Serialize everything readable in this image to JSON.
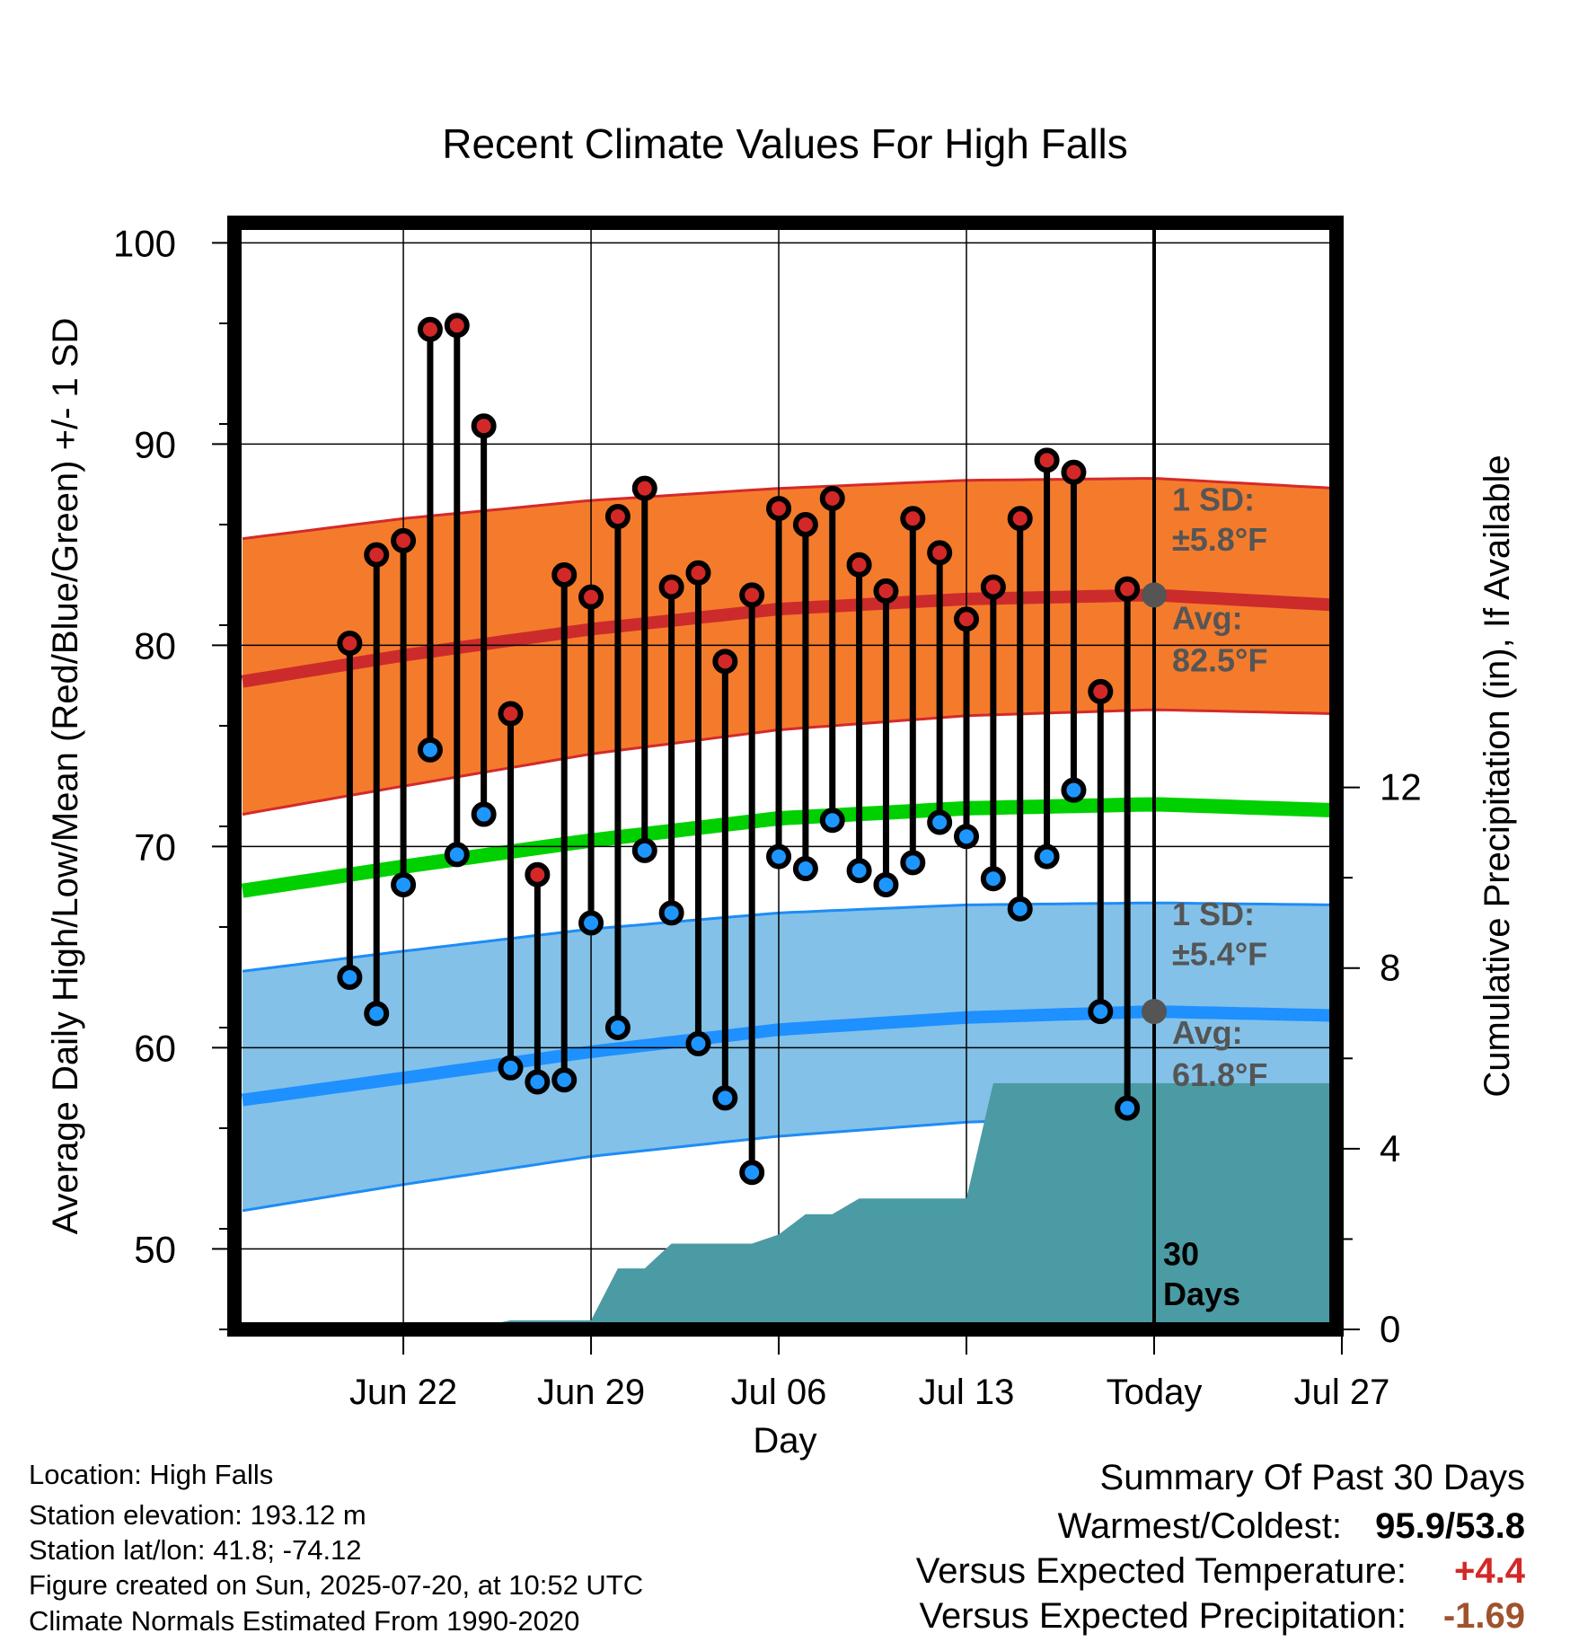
{
  "chart_data": {
    "type": "line",
    "title": "Recent Climate Values For High Falls",
    "xlabel": "Day",
    "ylabel": "Average Daily High/Low/Mean (Red/Blue/Green) +/- 1 SD",
    "y2label": "Cumulative Precipitation (in), If Available",
    "ylim": [
      46,
      101
    ],
    "y2lim": [
      0,
      24.5
    ],
    "xlim": [
      -3.3,
      37.8
    ],
    "x_unit": "days since Jun 19",
    "x_ticks": [
      {
        "x": 3,
        "label": "Jun 22"
      },
      {
        "x": 10,
        "label": "Jun 29"
      },
      {
        "x": 17,
        "label": "Jul 06"
      },
      {
        "x": 24,
        "label": "Jul 13"
      },
      {
        "x": 31,
        "label": "Today"
      },
      {
        "x": 38,
        "label": "Jul 27"
      }
    ],
    "y_ticks": [
      50,
      60,
      70,
      80,
      90,
      100
    ],
    "y2_ticks": [
      0,
      4,
      8,
      12
    ],
    "grid": true,
    "today_x": 31,
    "daily_high": [
      80.1,
      84.5,
      85.2,
      95.7,
      95.9,
      90.9,
      76.6,
      68.6,
      83.5,
      82.4,
      86.4,
      87.8,
      82.9,
      83.6,
      79.2,
      82.5,
      86.8,
      86.0,
      87.3,
      84.0,
      82.7,
      86.3,
      84.6,
      81.3,
      82.9,
      86.3,
      89.2,
      88.6,
      77.7,
      82.8
    ],
    "daily_low": [
      63.5,
      61.7,
      68.1,
      74.8,
      69.6,
      71.6,
      59.0,
      58.3,
      58.4,
      66.2,
      61.0,
      69.8,
      66.7,
      60.2,
      57.5,
      53.8,
      69.5,
      68.9,
      71.3,
      68.8,
      68.1,
      69.2,
      71.2,
      70.5,
      68.4,
      66.9,
      69.5,
      72.8,
      61.8,
      57.0
    ],
    "normal_high": [
      [
        -3.0,
        78.2
      ],
      [
        3.0,
        79.5
      ],
      [
        10.0,
        80.8
      ],
      [
        17.0,
        81.8
      ],
      [
        24.0,
        82.3
      ],
      [
        31.0,
        82.5
      ],
      [
        37.8,
        82.0
      ]
    ],
    "normal_low": [
      [
        -3.0,
        57.4
      ],
      [
        3.0,
        58.5
      ],
      [
        10.0,
        59.8
      ],
      [
        17.0,
        60.9
      ],
      [
        24.0,
        61.5
      ],
      [
        31.0,
        61.8
      ],
      [
        37.8,
        61.6
      ]
    ],
    "normal_mean": [
      [
        -3.0,
        67.8
      ],
      [
        3.0,
        69.0
      ],
      [
        10.0,
        70.3
      ],
      [
        17.0,
        71.4
      ],
      [
        24.0,
        71.9
      ],
      [
        31.0,
        72.1
      ],
      [
        37.8,
        71.8
      ]
    ],
    "high_band_upper": [
      [
        -3.0,
        85.3
      ],
      [
        3.0,
        86.3
      ],
      [
        10.0,
        87.2
      ],
      [
        17.0,
        87.8
      ],
      [
        24.0,
        88.2
      ],
      [
        31.0,
        88.3
      ],
      [
        37.8,
        87.8
      ]
    ],
    "high_band_lower": [
      [
        -3.0,
        71.6
      ],
      [
        3.0,
        73.0
      ],
      [
        10.0,
        74.6
      ],
      [
        17.0,
        75.8
      ],
      [
        24.0,
        76.5
      ],
      [
        31.0,
        76.8
      ],
      [
        37.8,
        76.6
      ]
    ],
    "low_band_upper": [
      [
        -3.0,
        63.8
      ],
      [
        3.0,
        64.8
      ],
      [
        10.0,
        65.9
      ],
      [
        17.0,
        66.7
      ],
      [
        24.0,
        67.1
      ],
      [
        31.0,
        67.2
      ],
      [
        37.8,
        67.1
      ]
    ],
    "low_band_lower": [
      [
        -3.0,
        51.9
      ],
      [
        3.0,
        53.2
      ],
      [
        10.0,
        54.6
      ],
      [
        17.0,
        55.6
      ],
      [
        24.0,
        56.3
      ],
      [
        31.0,
        56.6
      ],
      [
        37.8,
        56.5
      ]
    ],
    "precip_cumulative": [
      [
        -3.0,
        0
      ],
      [
        1.0,
        0
      ],
      [
        4.0,
        0
      ],
      [
        6.0,
        0.08
      ],
      [
        7.0,
        0.2
      ],
      [
        10.0,
        0.2
      ],
      [
        11.0,
        1.35
      ],
      [
        12.0,
        1.35
      ],
      [
        13.0,
        1.9
      ],
      [
        16.0,
        1.9
      ],
      [
        17.0,
        2.1
      ],
      [
        18.0,
        2.55
      ],
      [
        19.0,
        2.55
      ],
      [
        20.0,
        2.9
      ],
      [
        24.0,
        2.9
      ],
      [
        25.0,
        5.45
      ],
      [
        37.8,
        5.45
      ]
    ],
    "annotations": {
      "high_sd": {
        "line1": "1 SD:",
        "line2": "±5.8°F"
      },
      "high_avg": {
        "line1": "Avg:",
        "line2": "82.5°F",
        "value": 82.5
      },
      "low_sd": {
        "line1": "1 SD:",
        "line2": "±5.4°F"
      },
      "low_avg": {
        "line1": "Avg:",
        "line2": "61.8°F",
        "value": 61.8
      },
      "precip_label": {
        "line1": "30",
        "line2": "Days"
      }
    },
    "colors": {
      "high_band": "#f47b2c",
      "high_edge": "#d42a2a",
      "high_avg": "#cc2b2b",
      "low_band": "#83c1e8",
      "low_edge": "#1e8cf5",
      "low_avg": "#1e90ff",
      "mean": "#00d000",
      "precip": "#4a9ba3",
      "high_dot": "#d32828",
      "low_dot": "#1e96ff",
      "marker": "#555555",
      "annot": "#555555"
    }
  },
  "footer": {
    "location": "Location: High Falls",
    "elevation": "Station elevation: 193.12 m",
    "latlon": "Station lat/lon: 41.8; -74.12",
    "created": "Figure created on Sun, 2025-07-20, at 10:52 UTC",
    "normals": "Climate Normals Estimated From 1990-2020"
  },
  "summary": {
    "title": "Summary Of Past 30 Days",
    "warm_cold_label": "Warmest/Coldest:",
    "warm_cold_value": "95.9/53.8",
    "temp_label": "Versus Expected Temperature:",
    "temp_value": "+4.4",
    "temp_color": "#d32828",
    "precip_label": "Versus Expected Precipitation:",
    "precip_value": "-1.69",
    "precip_color": "#a0522d"
  }
}
